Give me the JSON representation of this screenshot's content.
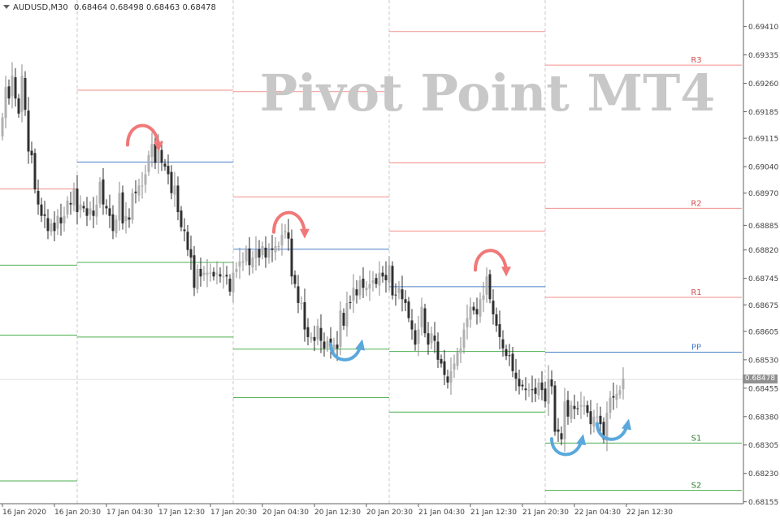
{
  "header": {
    "symbol": "AUDUSD,M30",
    "ohlc": "0.68464 0.68498 0.68463 0.68478"
  },
  "watermark": "Pivot Point MT4",
  "colors": {
    "resistance": "#f0908a",
    "pivot": "#4a7fc8",
    "support": "#4caf50",
    "bull_candle": "#b0b0b0",
    "bear_candle": "#303030",
    "arrow_red": "#f07878",
    "arrow_blue": "#5aa8dc",
    "watermark": "#c8c8c8",
    "grid": "#c8c8c8",
    "axis_text": "#404040",
    "price_badge_bg": "#909090"
  },
  "icons": [
    "menu-triangle-icon",
    "curved-arrow-down-icon",
    "curved-arrow-up-icon"
  ],
  "chart_data": {
    "type": "candlestick",
    "symbol": "AUDUSD",
    "timeframe": "M30",
    "ylim": [
      0.6815,
      0.6948
    ],
    "y_ticks": [
      0.6941,
      0.69335,
      0.6926,
      0.69185,
      0.69115,
      0.6904,
      0.6897,
      0.68885,
      0.6882,
      0.68745,
      0.68675,
      0.68605,
      0.6853,
      0.68455,
      0.6838,
      0.68305,
      0.6823,
      0.68155
    ],
    "x_ticks": [
      "16 Jan 2020",
      "16 Jan 20:30",
      "17 Jan 04:30",
      "17 Jan 12:30",
      "17 Jan 20:30",
      "20 Jan 04:30",
      "20 Jan 12:30",
      "20 Jan 20:30",
      "21 Jan 04:30",
      "21 Jan 12:30",
      "21 Jan 20:30",
      "22 Jan 04:30",
      "22 Jan 12:30"
    ],
    "x_tick_index": [
      0,
      16,
      32,
      48,
      64,
      80,
      96,
      112,
      128,
      144,
      160,
      176,
      192
    ],
    "current_price": "0.68478",
    "session_separators_index": [
      23,
      71,
      119,
      167
    ],
    "pivot_levels": [
      {
        "start": -1,
        "end": 23,
        "R1": 0.68981,
        "S1": 0.6878,
        "S2": 0.68595,
        "S3": 0.6821
      },
      {
        "start": 23,
        "end": 71,
        "R2": 0.69242,
        "PP": 0.69052,
        "S1": 0.68787,
        "S2": 0.6859
      },
      {
        "start": 71,
        "end": 119,
        "R2": 0.69238,
        "R1": 0.6896,
        "PP": 0.68822,
        "S1": 0.68558,
        "S2": 0.6843
      },
      {
        "start": 119,
        "end": 167,
        "R3": 0.69397,
        "R2": 0.6905,
        "R1": 0.6887,
        "PP": 0.68723,
        "S1": 0.68552,
        "S2": 0.68392
      },
      {
        "start": 167,
        "end": 240,
        "R3": 0.69308,
        "R2": 0.6893,
        "R1": 0.68695,
        "PP": 0.6855,
        "S1": 0.6831,
        "S2": 0.68185
      }
    ],
    "level_labels": [
      "R3",
      "R2",
      "R1",
      "PP",
      "S1",
      "S2"
    ],
    "closes": [
      0.6917,
      0.6925,
      0.6922,
      0.6928,
      0.6922,
      0.6918,
      0.6928,
      0.6919,
      0.6908,
      0.6907,
      0.6898,
      0.6894,
      0.6891,
      0.6891,
      0.6887,
      0.6889,
      0.6887,
      0.6891,
      0.6889,
      0.6891,
      0.6895,
      0.6894,
      0.6898,
      0.6892,
      0.6894,
      0.6893,
      0.6891,
      0.6893,
      0.6891,
      0.6894,
      0.69,
      0.6894,
      0.6893,
      0.6891,
      0.6887,
      0.689,
      0.6897,
      0.6889,
      0.6891,
      0.689,
      0.6897,
      0.6897,
      0.6899,
      0.6899,
      0.6902,
      0.6907,
      0.691,
      0.6905,
      0.6909,
      0.6905,
      0.6904,
      0.6902,
      0.6897,
      0.6899,
      0.6892,
      0.6888,
      0.6887,
      0.6882,
      0.688,
      0.6872,
      0.6877,
      0.6875,
      0.6876,
      0.6876,
      0.6876,
      0.6875,
      0.6876,
      0.6875,
      0.6875,
      0.6875,
      0.6871,
      0.6876,
      0.6877,
      0.6879,
      0.6879,
      0.6882,
      0.6878,
      0.688,
      0.6882,
      0.688,
      0.6883,
      0.688,
      0.6882,
      0.6882,
      0.6883,
      0.6883,
      0.6886,
      0.6887,
      0.6885,
      0.6875,
      0.6873,
      0.6868,
      0.6868,
      0.6861,
      0.6859,
      0.6859,
      0.6858,
      0.6862,
      0.6858,
      0.6856,
      0.6858,
      0.6856,
      0.6857,
      0.6856,
      0.6866,
      0.6862,
      0.6868,
      0.6868,
      0.6872,
      0.687,
      0.6874,
      0.6872,
      0.6872,
      0.6873,
      0.6874,
      0.6873,
      0.6876,
      0.6875,
      0.6874,
      0.6878,
      0.687,
      0.687,
      0.6872,
      0.6869,
      0.6868,
      0.6864,
      0.6861,
      0.6857,
      0.6861,
      0.6867,
      0.686,
      0.6857,
      0.686,
      0.6858,
      0.6853,
      0.6852,
      0.6849,
      0.6847,
      0.685,
      0.6852,
      0.6855,
      0.6856,
      0.6861,
      0.6864,
      0.6867,
      0.6866,
      0.6865,
      0.6869,
      0.687,
      0.6875,
      0.6869,
      0.6865,
      0.6862,
      0.6859,
      0.6856,
      0.6854,
      0.6854,
      0.685,
      0.6848,
      0.6846,
      0.6846,
      0.6845,
      0.6845,
      0.6845,
      0.6844,
      0.6847,
      0.6845,
      0.6842,
      0.6848,
      0.6846,
      0.6834,
      0.6834,
      0.6832,
      0.6842,
      0.6838,
      0.6841,
      0.684,
      0.684,
      0.6841,
      0.6841,
      0.6839,
      0.6836,
      0.6838,
      0.6838,
      0.6836,
      0.6832,
      0.6839,
      0.6843,
      0.6843,
      0.6844,
      0.6845,
      0.6848
    ]
  }
}
